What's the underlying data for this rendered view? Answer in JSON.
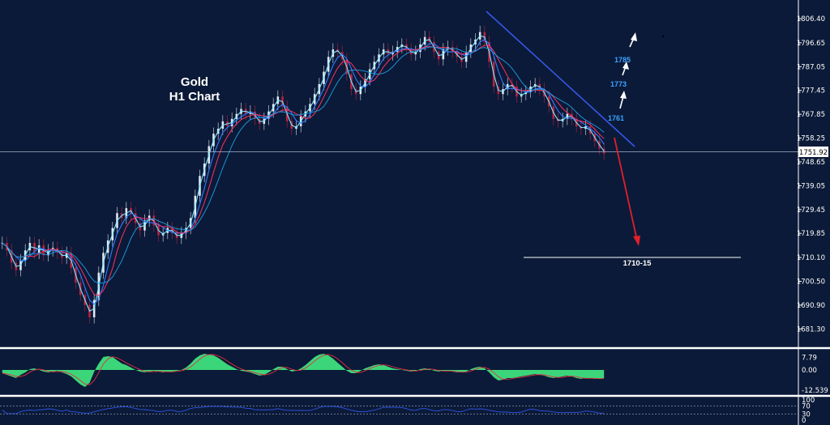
{
  "chart_data": {
    "type": "line",
    "title_lines": [
      "Gold",
      "H1 Chart"
    ],
    "price_axis": {
      "ticks": [
        "1806.40",
        "1796.65",
        "1787.05",
        "1777.45",
        "1767.85",
        "1758.25",
        "1748.65",
        "1739.05",
        "1729.45",
        "1719.85",
        "1710.10",
        "1700.50",
        "1690.90",
        "1681.30"
      ],
      "tick_values": [
        1806.4,
        1796.65,
        1787.05,
        1777.45,
        1767.85,
        1758.25,
        1748.65,
        1739.05,
        1729.45,
        1719.85,
        1710.1,
        1700.5,
        1690.9,
        1681.3
      ],
      "range": [
        1677.5,
        1810.0
      ],
      "current_price": 1751.92,
      "current_price_label": "1751.92"
    },
    "price_series": {
      "name": "",
      "bar": "H1",
      "values": [
        1716,
        1713,
        1708,
        1705,
        1709,
        1713,
        1716,
        1712,
        1715,
        1711,
        1713,
        1714,
        1712,
        1710,
        1712,
        1706,
        1700,
        1695,
        1691,
        1686,
        1693,
        1704,
        1712,
        1717,
        1722,
        1728,
        1726,
        1730,
        1728,
        1724,
        1721,
        1725,
        1727,
        1723,
        1719,
        1720,
        1722,
        1720,
        1718,
        1720,
        1722,
        1726,
        1735,
        1743,
        1748,
        1755,
        1760,
        1762,
        1765,
        1763,
        1766,
        1768,
        1770,
        1768,
        1769,
        1766,
        1764,
        1766,
        1769,
        1772,
        1775,
        1771,
        1765,
        1762,
        1763,
        1767,
        1769,
        1772,
        1776,
        1780,
        1785,
        1791,
        1794,
        1793,
        1790,
        1784,
        1778,
        1776,
        1779,
        1782,
        1786,
        1789,
        1792,
        1794,
        1792,
        1793,
        1795,
        1796,
        1794,
        1792,
        1793,
        1796,
        1799,
        1797,
        1793,
        1790,
        1794,
        1795,
        1793,
        1791,
        1789,
        1793,
        1796,
        1798,
        1801,
        1797,
        1789,
        1779,
        1776,
        1778,
        1780,
        1779,
        1775,
        1776,
        1777,
        1779,
        1780,
        1778,
        1775,
        1771,
        1766,
        1765,
        1766,
        1768,
        1766,
        1763,
        1762,
        1763,
        1760,
        1757,
        1754,
        1752
      ]
    },
    "oscillator_1": {
      "ticks": [
        "7.79",
        "0.00",
        "-12.539"
      ],
      "tick_values": [
        7.79,
        0.0,
        -12.539
      ],
      "range": [
        -13.5,
        10.5
      ],
      "values": [
        -2.0,
        -3.0,
        -4.0,
        -5.0,
        -3.0,
        -1.5,
        0.5,
        1.0,
        0.0,
        -1.0,
        -1.5,
        -1.0,
        -0.5,
        -1.5,
        -2.5,
        -4.0,
        -6.5,
        -9.0,
        -10.5,
        -8.0,
        -1.0,
        4.0,
        8.0,
        8.5,
        8.0,
        6.0,
        4.0,
        3.0,
        1.5,
        0.0,
        -1.0,
        -1.5,
        -1.0,
        -0.5,
        -1.0,
        -1.5,
        -1.0,
        -1.0,
        -0.5,
        0.0,
        1.5,
        4.0,
        7.0,
        9.0,
        10.0,
        9.5,
        9.0,
        7.5,
        5.5,
        3.5,
        2.0,
        0.5,
        -0.5,
        -1.0,
        -1.5,
        -2.5,
        -3.5,
        -3.0,
        -1.5,
        0.5,
        2.0,
        2.0,
        0.5,
        -1.0,
        -0.5,
        1.0,
        3.0,
        5.5,
        8.0,
        9.5,
        10.0,
        9.0,
        7.0,
        4.5,
        2.0,
        -0.5,
        -2.0,
        -2.0,
        -0.5,
        1.0,
        2.0,
        3.0,
        3.5,
        3.0,
        2.0,
        1.0,
        0.5,
        0.0,
        -0.5,
        -1.0,
        -0.5,
        0.5,
        1.0,
        0.5,
        -0.5,
        -1.0,
        -0.5,
        -0.5,
        -1.0,
        -1.5,
        -1.5,
        -1.0,
        0.5,
        1.5,
        2.0,
        1.0,
        -1.5,
        -4.5,
        -6.5,
        -6.0,
        -5.0,
        -5.0,
        -4.5,
        -4.0,
        -3.5,
        -3.0,
        -2.5,
        -3.0,
        -3.5,
        -4.5,
        -5.0,
        -4.5,
        -4.0,
        -3.5,
        -4.0,
        -5.0,
        -5.5,
        -5.0,
        -5.0,
        -5.5,
        -5.5,
        -5.0
      ]
    },
    "oscillator_2": {
      "ticks": [
        "100",
        "70",
        "30",
        "0"
      ],
      "tick_values": [
        100,
        70,
        30,
        0
      ],
      "range": [
        0,
        100
      ],
      "levels": [
        70,
        30
      ]
    },
    "annotations": {
      "targets": [
        {
          "label": "1761",
          "price": 1761
        },
        {
          "label": "1773",
          "price": 1773
        },
        {
          "label": "1785",
          "price": 1785
        }
      ],
      "support_label": "1710-15",
      "support_price": 1712.5
    },
    "colors": {
      "background": "#0b1a38",
      "trendline": "#3657e8",
      "down_arrow": "#e0202a",
      "target_label": "#3da2ff",
      "histogram": "#3cd67a",
      "price_line": "#8fc8ff"
    }
  }
}
